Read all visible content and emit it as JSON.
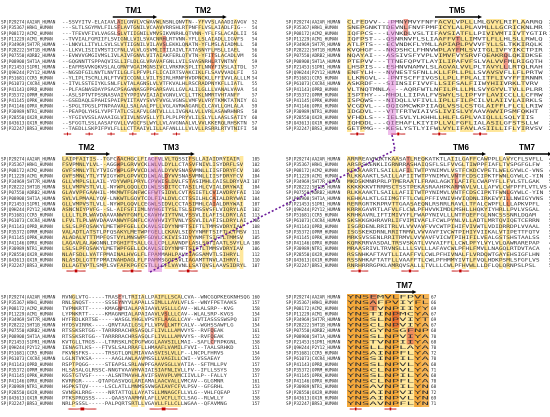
{
  "figure": {
    "type": "multiple-sequence-alignment",
    "colors": {
      "conserved_orange": "#f4a93c",
      "conserved_yellow": "#ffe38a",
      "highlight_red": "#e0442a",
      "motif_pink": "#d96bd0",
      "arrow_purple": "#6a1b9a",
      "text": "#222222"
    },
    "names": [
      "SP|P29274|AA2AR_HUMAN",
      "SP|P35367|HRH1_HUMAN",
      "SP|P08172|ACM2_HUMAN",
      "SP|P11229|ACM1_HUMAN",
      "SP|P34969|5HT7R_HUMAN",
      "SP|P28222|5HT1B_HUMAN",
      "SP|P07550|ADRB2_HUMAN",
      "SP|P08908|5HT1A_HUMAN",
      "SP|P21453|S1PR1_HUMAN",
      "SP|Q9H244|P2Y12_HUMAN",
      "SP|P51681|CCR5_HUMAN",
      "SP|P61073|CXCR4_HUMAN",
      "SP|P41143|OPRD_HUMAN",
      "SP|P35372|OPRM_HUMAN",
      "SP|P41145|OPRK_HUMAN",
      "SP|P41146|OPRX_HUMAN",
      "SP|P30989|NTR1_HUMAN",
      "SP|P28550|OX2R_HUMAN",
      "SP|O43613|OX1R_HUMAN",
      "SP|P32247|BRS3_HUMAN"
    ],
    "blocks": [
      {
        "tm_labels": [
          {
            "text": "TM1",
            "pos": 0.38
          },
          {
            "text": "TM2",
            "pos": 0.75
          }
        ],
        "sequences": [
          "--SSVYITV-ELAIAVLAILGNVLVCWAVWLNSNLQNVTN--YFVVSLAAADIAVGV",
          "---SLTLSGYMVLFILSFLAVTGNILVCAAVVRRSHLRTPNFFLVSLAIADLFIG--",
          "---TFEVVFIVLVAGSLSLVTIIGNILVMVSIKVNRHLQTVNN-YFLFSLACADLII",
          "--TVVIALFGMIIFLSVIGNLLVILSVACNRHLRTVNN-YFLLSLAIADLLIGVFS",
          "--LNKVLLITVLLSVLSLVTIIGNILVILAVSLEKKLQNATN-YFLMSLAIADMLL",
          "--LLKVLISIIVMSTICFNLLVLVLGSVMLITIIAIVLTATASNYFLMSLLIAEL",
          "--EVWVVGMGIVMSLIVLAIVFGNVLVITAIAKFERLQTVTN-YFITSLACADLVM",
          "--GQGNNTTSPPAQVISLLIFLDLGLVRAVAFGNLLVILSVASNRHLRTVNTNY",
          "--EAFMSVVKQKVSLALGMVFVGAIMGNSIVCLVRKRKSPLITLNNYFIVSLAITDL",
          "--NGSDFGILNVTLNVTILGLFLPFVPLFLICAIRTSVAKCIKLFLSAVVVADLFI",
          "--YLIPLTSCRLLNLFTVVICCGNLLVILTSIRLHRNFHVDPNCKLLFFIVVLALLLM",
          "--ITVLSSTEIYKLSNLFLVTALAGNSLVLVTFKVALHLRSCRADPNYKFLLIATL",
          "--PLFAGNASDAYPSACPSAGANASGPPGARSAVLLGVLALILGLLLVANALVAVA",
          "--ASLSPTVTPSSNASVAIYYPPIVVIAIAIVGNVLVCLLTTKLNMRTVHTANFF",
          "--GSEDAQLEPAHISPAIPVIITAVYSVVFVVGLVGNSLVMFVLVRYTKMKTATNIY",
          "--SPGLTPGSLPTNPAAVALLSALAALPFLLVGLAVRWAGARLCLCAVLLGHLALA",
          "--PEAPQLYHSLYVPFTATLCSLAFVLGNTVLLLLIVGNALVLLVRLASAWRHNRS",
          "--YFGIVVSSLAVAAIGLVIIVLNSVSLLYTLPLPLPRYVLILSLYLLAASLSATIY",
          "--SFGGTLSSLAASAFGVLLVVGCFSLWYLLVLAVGNAALVLVVLKKERQLRHSKTN",
          "--TAEDLLSKPIFPVLFLLLCTTAAIVLILLAFANLLLLVLVLLRSRRLRTVTNIFI"
        ],
        "end_numbers": [
          52,
          54,
          56,
          54,
          58,
          56,
          56,
          59,
          57,
          53,
          54,
          55,
          54,
          57,
          61,
          59,
          58,
          60,
          57,
          58
        ],
        "consensus": "  *       *       *    *  *       *  "
      },
      {
        "tm_labels": [
          {
            "text": "TM5",
            "pos": 0.55
          }
        ],
        "sequences": [
          "CLFEDVV---PMNYMVYFNFFACVLVPLLLMLGVYLRIFLAARRQ",
          "SNEPGNKTTDEVNLFNVFPMFICYLALPLAVMLLLGCRICKNLMR",
          "IQFPCS---LVNKDLVSLTIFAVSIATFLLPIVIVMTIIVTYGTIR",
          "IQFPST---QSNRNVFLSLIAAFFVTLLIMVTLFLLHLSLLRWLQ",
          "ATLPTS---ECVNDKFLYMLLAPIAPLPVVVFYLLSLTKKIRQLK",
          "KVQHGF---NKDSHCLFHNVWPLAYFMLSVITGLIVFYIKCTPIR",
          "NQAYAI---ASSIVSFYVPLVIMVFVYSRVFQEAKRQLQKIDKSE",
          "PTEPVV---TTNEFQPVTLAYILIPAFVFSLVALVVFMLRIGQTH",
          "LHSPIS---ESHNVNAMVLSLAGVALVVLPLTAVYLLLRTQLRAH",
          "ENFYLH---NVNESTSFNLLKLLFPLLPLLSVAVSVFLLFLPRTW",
          "LLKRGVL---PNTSCFFIVGSLLPLLFPLALITFLIVYFFIRNNR",
          "ASKRDF---SIINSIFIVVFLLSIFSALFIIWYHIIVRKLTVRV",
          "VLTNQTMNLA---AQRFWTLNFILPLLLMLSVYGYVLTVLLPLRR",
          "ISPTHY---MHDLLIIPALFVSWYLSLIPFVFLAVICCLLLCFRW",
          "ISPQWS---NIDQLLVFIVLLIPLLFILPCILVLAIIVLAIRKLS",
          "VCGDVL---DQIGMCWKPIIAQLVSSLCSTGLAIFFLFLCLLRIW",
          "IDGDVL---VTTFRTWIAIVSLIVISLVYAAVAWVIPSMFQKHT",
          "VFHDLS---IELSVLYLKHHLLHLFLGPLVAIQLLLSQLYIIS",
          "IQHDDL---QIEHAFLKIYIPLLVLFGFLIALASILGFSTSLLW",
          "GETPMG---KESLYSTLYIFWLVYLIFAVLASIILLIFLYIRVSV"
        ],
        "end_numbers": [
          201,
          196,
          196,
          192,
          197,
          195,
          198,
          196,
          199,
          195,
          197,
          195,
          197,
          197,
          194,
          196,
          193,
          193,
          203,
          203
        ],
        "consensus": "            *    *   *     *     "
      },
      {
        "tm_labels": [
          {
            "text": "TM2",
            "pos": 0.13
          },
          {
            "text": "TM3",
            "pos": 0.58
          }
        ],
        "sequences": [
          "LAIPFAITIS--TGFCAACHGCLFIACFVLVLTQSSIFSLLAIAIDRYIAIR",
          "FSVPMNLYLVL--AGGWPLGRVVCKLWLVLDYLLCTASVFNIVLISYDRFLSV",
          "GVFSMNLYTLYTVIGYWPLGPVVCDLWLALDYVVSNASVMNLLIISFDRYFCV",
          "GVFSMNLYTLYTVIGYWPLGPVVCDLWLALDYVVSNASVMNLLIISFDRYFCV",
          "GLLVMPLSLLAIL-YDYVWPLPRYLCPVWISLDVLFSTASIMHLCAISLDRYVAI",
          "SLLVMPVSTLVLL-NYWPLGQQLCDLWLSSDITCCTASILHLCVIALDRYWAI",
          "GLAVVPFGAAHIL-MKMWTFGNFWCEFWTSIDVLCVTASIETLCVIAVDRYFAI",
          "SVLVLPMAALYQV-LNKWTLGQVTCDLFIALDVLCCTSSILHLCAIALDRYWAI",
          "GLLVMPVSTLVLL-NYWPLGQVLCEGWLSIDVLCCTASIMHLCAIALDRYWAI",
          "ASNCNIYPVFG--SL-AIFSFIIMLNYHGITYSLTSLSIMSSVSFLVIQRYLAI",
          "LLLLTLPLWAVDAAVANWYFGNFLCKAVHVIYTVNLYSSVLILAFISLDRYLAI",
          "LFVLTLPLWAVDAAVANWYFGNFLCKAVHVIYTVNLYSSVLILAFISLDRYLAI",
          "LSLSLPFQSAKYLMETWPFGELLCKAVLSIDYYNMFTSIFTLTMMSVDRYIAV",
          "VALADTLATSTLPFQSAKYLMETWPFGELLCKAVLSIDYYNMFTSIFTLCTMSV",
          "ALADALVTTTMPFQSTVYLMNSWPFGDVLCKIVISIDYYNMFTSIFTLTMMSV",
          "LAGAVLALAWGNNLIPGHIFTSALLGLLCPLLAVNDFLASLSCTIAATLSVYLLA",
          "LSLSLPFQSAKYLMETWPFGELLCKAVLSIDYYNMFTSIFTLTMMSVDRYIAV",
          "NLAFSDLLVATFPMAINALHVGLFLFPAMMAHLPAVLIAGSAMVTLSIHRYL",
          "NLASDLLGTTFPMAINAHDAGLFLFPAMMSGQPSVLIAGAMTTNVLAIHRYL",
          "DLLAGTVPTLSMPLSVFAFKPGFCSTLLLGFLVAVNLLSATQVSLAAVSIDRYL"
        ],
        "end_numbers": [
          105,
          102,
          106,
          104,
          107,
          104,
          110,
          104,
          107,
          102,
          113,
          106,
          108,
          111,
          105,
          108,
          106,
          112,
          110,
          107
        ],
        "consensus": "            *              *          *  "
      },
      {
        "tm_labels": [
          {
            "text": "TM6",
            "pos": 0.57
          },
          {
            "text": "TM7",
            "pos": 0.9
          }
        ],
        "sequences": [
          "ARRREAVRQKTKAASATLREQKATKTLAIILGAFFCAWPPLLAVYCFLSVFLL",
          "ARSRSKENKLIGRNRRASHAIQSFLSLFVVGLTIWPPFIAFLTVSPGFGLFW",
          "KEKKAARTLSAILLAFILTWTPYNIMVLVSTFCKDCVPETLWELGYWLC-VNS",
          "RLKKAAKTLSAILLAFIITWTPYNIMVLVNTFCDSCIPKTFWNLGYWLC-YIN",
          "MKDSKMNRPRLPTMERAATLFRAKLAGKTLAFIFLCWAPYFLLFVLSTLGAK",
          "KKKKKKVTRRMSCTSSTPEKASRAAHPKARMAVLVLLLAFVLCWFPFFLVTLVS",
          "RLKKAAKTLSAILLAFIITWTPYNIMVLVNTFCDSCIPKTFWNLGYWLC-YIN",
          "KEHKALKTLGIIMGTFTLCWLPFFIVNIVHVIQDNLIRKEVYILLNWIGYVNS",
          "RERRGRTKRPRVTTGAASAEQNLRSRRLRAVLLTFALCWPFLLLLAPKVPFL",
          "KRRKGAVRTLAFVLFLCWLPFHVVKIMDLMSHLLHQKYIYHRLLPVLVSGAL",
          "KRHKAVRLIFTIMIVYFLFWAPYNIVLLLNTFQEFFGLNNCSSSNRLDQAM",
          "SKSKKGKHRAVRLIFVIMIVAFLFCWLPYNLVLLADTLMRTQVIQETCERRN",
          "ISGRDENLRRITRLVLVVVAVFVVCWTPIHIFVIVWTLVDIDRRDPLVVAAL",
          "ISGSKEKDRNLRRITRMVLVVVAVFIVCWTPIHIYVIIKALVTIPETTFQTV",
          "MRKSVSSENLRRITRMVLVVVAVFVICWTPIHIFILVEALGSTSHSTAALSS",
          "KQRKRRVASDALTRSVSKATLVVVAIFFLLCWLPFYLVYLVLQAWRAREPAP",
          "MRAASRIVLTRVNSLLLLSVLLLAFAVCWLPFHLFMVLLNAGQLRTDVTACA",
          "RSSNHKAFTAVTLLIAAFFVLCWLPFHIVNALFLVRDQWTGAYEHSIGFLHN",
          "RSSNHKAFTATFLLVAAFFTLCWLPFHMMYIVTLFVQLHDKPSMLSFGFLVS",
          "RNRHRRRGPKLAMRQVSALLLTVLLLCWLPFHVWLLLDFLQLQRNPSLPSL"
        ],
        "end_numbers": [
          48,
          52,
          47,
          51,
          50,
          48,
          52,
          51,
          53,
          49,
          51,
          56,
          54,
          57,
          53,
          48,
          49,
          58,
          53,
          53
        ],
        "consensus": "          *          *     *      "
      },
      {
        "tm_labels": [],
        "sequences": [
          "RVNGLVTG-----TRASEYLTRIIALLPAIFLLSCALCVA--WNCGQPKEGKNHSQG",
          "RNLSNQST-----SSSEYNYVLAPALLSIMLLLAVLVFLS--WNYFPETAAKS",
          "TVPNKRTT-----KMAGNMIALAPAIAAVLVSLLLCAV--WLALSRP--KVG",
          "LYPNKRTT-----KMAGNMIALAPAIAAVLVSLLLCAV--WLALSRP-KVGS",
          "HYFRDLKRTSE-----WASGLYHGLVPSYFLAAGLLCAV--WTIASSSSWSPQ",
          "HYDSVIRRK-----QRVTAAILGSLFLLVPVLLWTFCALV--WGHSSAWFLG",
          "RTSSKSRTGG--TARRRRACHRSASQLFLIVLLLAMVVYS--RVFQEAK",
          "RTSSKSRTGG--TARRRRACHRSASQLFLIVLLLAMVVYS--RVFQEAK",
          "KVTGLLTRGS---LTRRSKLRCPGFWGGLAAVSILLMAI--SAFLCFRPKGNL",
          "IENAGTLKS---FTVSLSALRRAFLLHMAAFLVAMILFVVI--TAALSRHKD",
          "FKVNSFKS-----TRSGTLQRLMIAVAASVISLVLLF--LNCPLFHRVS",
          "LGLNTVKSA------AAGLAWLAAVMSSLLVAGILLCWI--VSSAEAY",
          "RSPTPQGG-----STEAPSLSRLAWPFGAAVSGLLVATIA--SFTMLLPV",
          "HLSASALGLRSSC-NNGTVAAVHVAIAISIAFNLIVLLFV--IFLLSSYS",
          "KGSTGTVSF-----ALSNTMAVHLAVIFSVAVPLVMCIIVLLP--FALLY",
          "KVRRGR-----QTAPGASVQGLARIAMALAACVALLVMCAV--GLGMNR",
          "HGPKSTQV-----LSCLATLLMNMSSVWGAIAVFCFVLPSV--GFGRHL",
          "SVNSKLRRG-----NRTATTQLLAYATSLLMNAGCFLLVLG--VHLFQEAP",
          "PTKSPRQSSS-----QAASYAAMHVLAFLLVCFLLTCLSAG--RLWLLY",
          "NRLPSSSL-----PALPQRTSRTLLVGAVLLFLLCLLWGAA--QFAVMNG"
        ],
        "end_numbers": [
          160,
          157,
          158,
          154,
          167,
          154,
          161,
          152,
          158,
          151,
          154,
          159,
          157,
          159,
          157,
          161,
          153,
          157,
          158,
          157
        ],
        "consensus": "       *                  *          "
      },
      {
        "tm_labels": [
          {
            "text": "TM7",
            "pos": 0.7
          }
        ],
        "sequences": [
          "YNSEMVLFPVL",
          "YNSAFPVIYFL",
          "YNSTVNPIIYY",
          "YNSTINPMCYA",
          "YNSSLNPVIYT",
          "YNSCLNPVIYA",
          "YNSGYNSGFNP",
          "YNSSLNPVIYA",
          "YNSTVNPIIYA",
          "YNSLLNPLAYA",
          "YNSAINPFLYA",
          "YNSSINPILYA",
          "YNSSLNPVLYA",
          "YNSCLNPVLYA",
          "YNSSLNPILYA",
          "YNSCLNPFLYA",
          "YNSAVNPILYN",
          "YNSAINPVIYN",
          "YNSAINPVLYN",
          "YNSAVNPFLYN"
        ],
        "end_numbers": [
          67,
          66,
          69,
          67,
          69,
          67,
          68,
          70,
          68,
          70,
          72,
          70,
          68,
          71,
          68,
          70,
          68,
          72,
          69,
          71
        ],
        "consensus": "  *  * "
      }
    ]
  }
}
